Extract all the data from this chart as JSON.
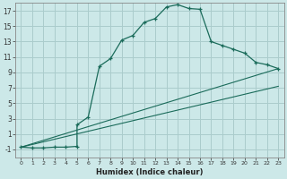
{
  "xlabel": "Humidex (Indice chaleur)",
  "ylabel": "",
  "bg_color": "#cce8e8",
  "grid_color": "#aacccc",
  "line_color": "#1a6b5a",
  "xlim": [
    -0.5,
    23.5
  ],
  "ylim": [
    -2.0,
    18.0
  ],
  "xticks": [
    0,
    1,
    2,
    3,
    4,
    5,
    6,
    7,
    8,
    9,
    10,
    11,
    12,
    13,
    14,
    15,
    16,
    17,
    18,
    19,
    20,
    21,
    22,
    23
  ],
  "yticks": [
    -1,
    1,
    3,
    5,
    7,
    9,
    11,
    13,
    15,
    17
  ],
  "main_x": [
    0,
    1,
    2,
    3,
    4,
    5,
    5,
    6,
    7,
    8,
    9,
    10,
    11,
    12,
    13,
    14,
    15,
    16,
    17,
    18,
    19,
    20,
    21,
    22,
    23
  ],
  "main_y": [
    -0.7,
    -0.8,
    -0.8,
    -0.7,
    -0.7,
    -0.6,
    2.2,
    3.2,
    9.8,
    10.8,
    13.2,
    13.8,
    15.5,
    16.0,
    17.5,
    17.8,
    17.3,
    17.2,
    13.0,
    12.5,
    12.0,
    11.5,
    10.3,
    10.0,
    9.5
  ],
  "line2_x": [
    0,
    23
  ],
  "line2_y": [
    -0.7,
    9.5
  ],
  "line3_x": [
    0,
    23
  ],
  "line3_y": [
    -0.7,
    7.2
  ]
}
